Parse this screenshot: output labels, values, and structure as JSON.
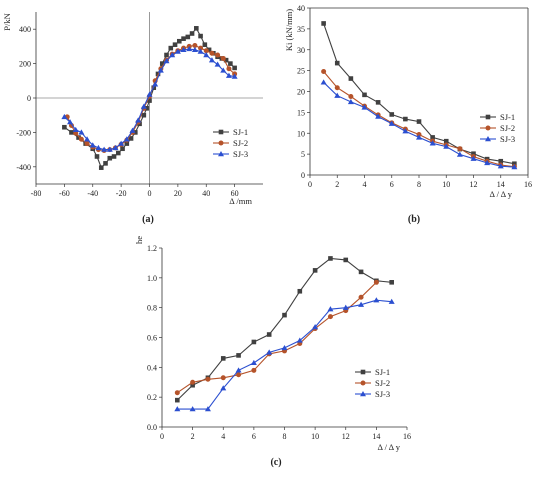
{
  "colors": {
    "SJ-1": "#404040",
    "SJ-2": "#b5532a",
    "SJ-3": "#2b4fd0"
  },
  "chart_data": [
    {
      "panel_label": "(a)",
      "type": "line",
      "xlabel": "Δ /mm",
      "ylabel": "P/kN",
      "xlim": [
        -80,
        80
      ],
      "ylim": [
        -500,
        500
      ],
      "xticks": [
        -80,
        -60,
        -40,
        -20,
        0,
        20,
        40,
        60
      ],
      "yticks": [
        -400,
        -200,
        0,
        200,
        400
      ],
      "legend": "lower-right",
      "grid": false,
      "series": [
        {
          "name": "SJ-1",
          "marker": "square",
          "x": [
            -60,
            -55,
            -50,
            -45,
            -40,
            -37,
            -34,
            -31,
            -28,
            -25,
            -22,
            -19,
            -16,
            -13,
            -10,
            -7,
            -4,
            -2,
            0,
            3,
            6,
            9,
            12,
            15,
            18,
            21,
            24,
            27,
            30,
            33,
            36,
            39,
            42,
            45,
            48,
            51,
            54,
            57,
            60
          ],
          "y": [
            -170,
            -200,
            -230,
            -265,
            -295,
            -340,
            -405,
            -380,
            -350,
            -340,
            -320,
            -295,
            -265,
            -235,
            -200,
            -150,
            -100,
            -60,
            -15,
            60,
            140,
            200,
            250,
            290,
            310,
            330,
            345,
            355,
            375,
            405,
            360,
            310,
            280,
            260,
            240,
            230,
            220,
            200,
            175
          ]
        },
        {
          "name": "SJ-2",
          "marker": "circle",
          "x": [
            -58,
            -55,
            -52,
            -48,
            -44,
            -40,
            -36,
            -32,
            -28,
            -24,
            -20,
            -16,
            -12,
            -8,
            -4,
            0,
            4,
            8,
            12,
            16,
            20,
            24,
            28,
            32,
            36,
            40,
            44,
            48,
            52,
            56,
            60
          ],
          "y": [
            -110,
            -160,
            -205,
            -240,
            -265,
            -285,
            -300,
            -305,
            -300,
            -290,
            -270,
            -245,
            -200,
            -140,
            -60,
            10,
            100,
            170,
            220,
            255,
            275,
            290,
            300,
            305,
            290,
            275,
            260,
            250,
            230,
            170,
            140
          ]
        },
        {
          "name": "SJ-3",
          "marker": "triangle",
          "x": [
            -60,
            -56,
            -52,
            -48,
            -44,
            -40,
            -36,
            -32,
            -28,
            -24,
            -20,
            -16,
            -12,
            -8,
            -4,
            0,
            4,
            8,
            12,
            16,
            20,
            24,
            28,
            32,
            36,
            40,
            44,
            48,
            52,
            56,
            60
          ],
          "y": [
            -110,
            -140,
            -185,
            -200,
            -240,
            -275,
            -290,
            -300,
            -300,
            -290,
            -265,
            -240,
            -190,
            -130,
            -50,
            20,
            80,
            160,
            215,
            250,
            270,
            280,
            285,
            280,
            270,
            250,
            220,
            195,
            160,
            130,
            125
          ]
        }
      ]
    },
    {
      "panel_label": "(b)",
      "type": "line",
      "xlabel": "Δ / Δ y",
      "ylabel": "Ki (kN/mm)",
      "xlim": [
        0,
        16
      ],
      "ylim": [
        0,
        40
      ],
      "xticks": [
        0,
        2,
        4,
        6,
        8,
        10,
        12,
        14,
        16
      ],
      "yticks": [
        0,
        5,
        10,
        15,
        20,
        25,
        30,
        35,
        40
      ],
      "legend": "right",
      "grid": false,
      "series": [
        {
          "name": "SJ-1",
          "marker": "square",
          "x": [
            1,
            2,
            3,
            4,
            5,
            6,
            7,
            8,
            9,
            10,
            11,
            12,
            13,
            14,
            15
          ],
          "y": [
            36.3,
            26.8,
            23.1,
            19.2,
            17.4,
            14.5,
            13.4,
            12.8,
            9.0,
            8.1,
            6.2,
            5.1,
            3.8,
            3.3,
            2.7
          ]
        },
        {
          "name": "SJ-2",
          "marker": "circle",
          "x": [
            1,
            2,
            3,
            4,
            5,
            6,
            7,
            8,
            9,
            10,
            11,
            12,
            13,
            14,
            15
          ],
          "y": [
            24.8,
            20.9,
            18.8,
            16.5,
            14.4,
            12.5,
            11.0,
            9.7,
            8.1,
            7.2,
            6.3,
            4.4,
            3.3,
            2.4,
            2.0
          ]
        },
        {
          "name": "SJ-3",
          "marker": "triangle",
          "x": [
            1,
            2,
            3,
            4,
            5,
            6,
            7,
            8,
            9,
            10,
            11,
            12,
            13,
            14,
            15
          ],
          "y": [
            22.2,
            19.0,
            17.5,
            16.2,
            14.0,
            12.3,
            10.5,
            9.0,
            7.6,
            6.8,
            4.9,
            3.9,
            2.9,
            2.1,
            1.9
          ]
        }
      ]
    },
    {
      "panel_label": "(c)",
      "type": "line",
      "xlabel": "Δ / Δ y",
      "ylabel": "he",
      "xlim": [
        0,
        16
      ],
      "ylim": [
        0,
        1.2
      ],
      "xticks": [
        0,
        2,
        4,
        6,
        8,
        10,
        12,
        14,
        16
      ],
      "yticks": [
        "0.0",
        "0.2",
        "0.4",
        "0.6",
        "0.8",
        "1.0",
        "1.2"
      ],
      "legend": "lower-right",
      "grid": false,
      "series": [
        {
          "name": "SJ-1",
          "marker": "square",
          "x": [
            1,
            2,
            3,
            4,
            5,
            6,
            7,
            8,
            9,
            10,
            11,
            12,
            13,
            14,
            15
          ],
          "y": [
            0.18,
            0.28,
            0.33,
            0.46,
            0.48,
            0.57,
            0.62,
            0.75,
            0.91,
            1.05,
            1.13,
            1.12,
            1.04,
            0.98,
            0.97
          ]
        },
        {
          "name": "SJ-2",
          "marker": "circle",
          "x": [
            1,
            2,
            3,
            4,
            5,
            6,
            7,
            8,
            9,
            10,
            11,
            12,
            13,
            14
          ],
          "y": [
            0.23,
            0.3,
            0.32,
            0.33,
            0.35,
            0.38,
            0.49,
            0.51,
            0.56,
            0.66,
            0.74,
            0.78,
            0.87,
            0.97
          ]
        },
        {
          "name": "SJ-3",
          "marker": "triangle",
          "x": [
            1,
            2,
            3,
            4,
            5,
            6,
            7,
            8,
            9,
            10,
            11,
            12,
            13,
            14,
            15
          ],
          "y": [
            0.12,
            0.12,
            0.12,
            0.26,
            0.38,
            0.43,
            0.5,
            0.53,
            0.58,
            0.67,
            0.79,
            0.8,
            0.82,
            0.85,
            0.84
          ]
        }
      ]
    }
  ]
}
